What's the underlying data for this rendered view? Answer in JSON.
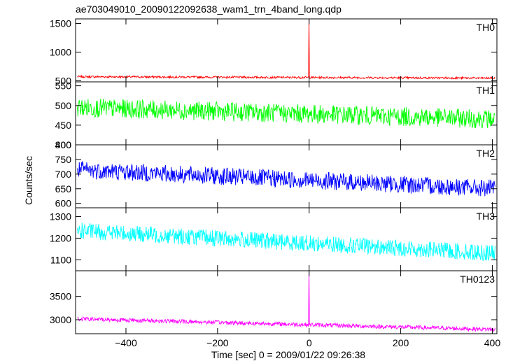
{
  "chart_data": {
    "type": "line",
    "title": "ae703049010_20090122092638_wam1_trn_4band_long.qdp",
    "ylabel": "Counts/sec",
    "xlabel": "Time [sec] 0 = 2009/01/22 09:26:38",
    "xlim": [
      -510,
      410
    ],
    "xticks": [
      -400,
      -200,
      0,
      200,
      400
    ],
    "xtick_labels": [
      "−400",
      "−200",
      "0",
      "200",
      "400"
    ],
    "grid": false,
    "panels": [
      {
        "name": "TH0",
        "color": "#ff0000",
        "ylim": [
          480,
          1580
        ],
        "yticks": [
          500,
          1000,
          1500
        ],
        "baseline_start": 570,
        "baseline_end": 545,
        "noise": 18,
        "spike": {
          "x": 0,
          "value": 1580
        }
      },
      {
        "name": "TH1",
        "color": "#00ff00",
        "ylim": [
          400,
          560
        ],
        "yticks": [
          400,
          450,
          500,
          550
        ],
        "baseline_start": 495,
        "baseline_end": 465,
        "noise": 24
      },
      {
        "name": "TH2",
        "color": "#0000ff",
        "ylim": [
          585,
          800
        ],
        "yticks": [
          600,
          650,
          700,
          750,
          800
        ],
        "baseline_start": 715,
        "baseline_end": 650,
        "noise": 30
      },
      {
        "name": "TH3",
        "color": "#00ffff",
        "ylim": [
          1050,
          1340
        ],
        "yticks": [
          1100,
          1200,
          1300
        ],
        "baseline_start": 1235,
        "baseline_end": 1130,
        "noise": 38
      },
      {
        "name": "TH0123",
        "color": "#ff00ff",
        "ylim": [
          2700,
          4050
        ],
        "yticks": [
          3000,
          3500
        ],
        "baseline_start": 3020,
        "baseline_end": 2790,
        "noise": 45,
        "spike": {
          "x": 0,
          "value": 4050
        }
      }
    ]
  }
}
